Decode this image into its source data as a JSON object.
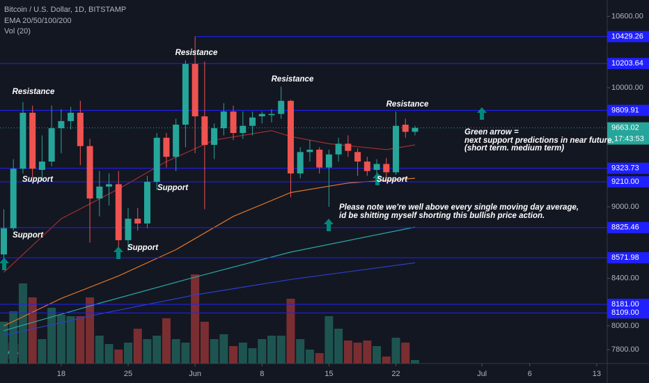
{
  "chart_data": {
    "type": "candlestick",
    "title": "Bitcoin / U.S. Dollar, 1D, BITSTAMP",
    "indicators": [
      "EMA 20/50/100/200",
      "Vol (20)"
    ],
    "colors": {
      "up": "#26a69a",
      "down": "#ef5350",
      "up_volume": "#1e5450",
      "down_volume": "#7a2e31",
      "level": "#2020ff",
      "background": "#131722"
    },
    "xlim": [
      -0.4,
      63.1
    ],
    "xticks": [
      {
        "value": 6,
        "label": "18"
      },
      {
        "value": 13,
        "label": "25"
      },
      {
        "value": 20,
        "label": "Jun"
      },
      {
        "value": 27,
        "label": "8"
      },
      {
        "value": 34,
        "label": "15"
      },
      {
        "value": 41,
        "label": "22"
      },
      {
        "value": 50,
        "label": "Jul"
      },
      {
        "value": 55,
        "label": "6"
      },
      {
        "value": 62,
        "label": "13"
      }
    ],
    "ylim": [
      7684,
      10737
    ],
    "yticks": [
      {
        "value": 10600,
        "label": "10600.00"
      },
      {
        "value": 10000,
        "label": "10000.00"
      },
      {
        "value": 9000,
        "label": "9000.00"
      },
      {
        "value": 8400,
        "label": "8400.00"
      },
      {
        "value": 8000,
        "label": "8000.00"
      },
      {
        "value": 7800,
        "label": "7800.00"
      }
    ],
    "candles": {
      "open": [
        8600,
        8820,
        9320,
        9790,
        9310,
        9380,
        9660,
        9720,
        9790,
        9510,
        9070,
        9170,
        9190,
        8720,
        8900,
        8860,
        9210,
        9580,
        9420,
        9690,
        10200,
        9760,
        9520,
        9660,
        9800,
        9620,
        9680,
        9760,
        9770,
        9780,
        9890,
        9280,
        9460,
        9480,
        9330,
        9440,
        9530,
        9460,
        9380,
        9310,
        9360,
        9290,
        9690,
        9630
      ],
      "high": [
        8980,
        9400,
        9880,
        9850,
        9600,
        9850,
        9820,
        9840,
        9890,
        9570,
        9300,
        9280,
        9300,
        8990,
        8990,
        9260,
        9620,
        9620,
        9740,
        10230,
        10430,
        10220,
        9700,
        9870,
        9850,
        9800,
        9800,
        9800,
        9820,
        10010,
        9900,
        9500,
        9560,
        9500,
        9480,
        9580,
        9600,
        9490,
        9420,
        9400,
        9410,
        9800,
        9740,
        9680
      ],
      "low": [
        8550,
        8800,
        9280,
        9250,
        9220,
        9340,
        9450,
        9650,
        9350,
        8700,
        8920,
        9010,
        8630,
        8630,
        8800,
        8820,
        9140,
        9330,
        9300,
        9500,
        9450,
        8980,
        9400,
        9600,
        9560,
        9570,
        9600,
        9700,
        9710,
        9740,
        9080,
        9240,
        9380,
        9280,
        9000,
        9380,
        9420,
        9260,
        9260,
        9250,
        9240,
        9270,
        9580,
        9600
      ],
      "close": [
        8820,
        9320,
        9790,
        9320,
        9380,
        9660,
        9720,
        9790,
        9510,
        9070,
        9170,
        9190,
        8720,
        8900,
        8860,
        9210,
        9580,
        9420,
        9690,
        10200,
        9760,
        9520,
        9660,
        9800,
        9620,
        9680,
        9750,
        9780,
        9780,
        9890,
        9280,
        9460,
        9480,
        9330,
        9440,
        9530,
        9470,
        9380,
        9300,
        9360,
        9290,
        9680,
        9630,
        9663.02
      ]
    },
    "volume": {
      "vlim": [
        0,
        300
      ],
      "values": [
        60,
        75,
        115,
        95,
        35,
        80,
        70,
        68,
        68,
        95,
        40,
        28,
        20,
        30,
        50,
        35,
        40,
        65,
        35,
        30,
        128,
        60,
        35,
        42,
        25,
        30,
        22,
        35,
        40,
        40,
        93,
        35,
        20,
        15,
        68,
        50,
        33,
        30,
        33,
        25,
        10,
        37,
        30,
        5
      ]
    },
    "ema": [
      {
        "color": "#a0302e",
        "x": [
          0,
          6,
          12,
          17,
          22,
          28,
          30,
          34,
          40,
          43
        ],
        "values": [
          8450,
          8900,
          9150,
          9380,
          9560,
          9640,
          9590,
          9530,
          9480,
          9520
        ]
      },
      {
        "color": "#e0762a",
        "x": [
          0,
          6,
          12,
          18,
          24,
          30,
          36,
          43
        ],
        "values": [
          8000,
          8230,
          8420,
          8640,
          8920,
          9120,
          9200,
          9240
        ]
      },
      {
        "color": "#2aa7a5",
        "x": [
          0,
          10,
          20,
          30,
          43
        ],
        "values": [
          7960,
          8190,
          8410,
          8620,
          8830
        ]
      },
      {
        "color": "#2a3fd0",
        "x": [
          0,
          10,
          20,
          30,
          43
        ],
        "values": [
          7920,
          8100,
          8260,
          8390,
          8530
        ]
      }
    ],
    "levels": [
      {
        "value": 10429.26,
        "label": "10429.26"
      },
      {
        "value": 10203.64,
        "label": "10203.64"
      },
      {
        "value": 9809.91,
        "label": "9809.91"
      },
      {
        "value": 9323.73,
        "label": "9323.73"
      },
      {
        "value": 9210,
        "label": "9210.00"
      },
      {
        "value": 8825.46,
        "label": "8825.46"
      },
      {
        "value": 8571.98,
        "label": "8571.98"
      },
      {
        "value": 8181,
        "label": "8181.00"
      },
      {
        "value": 8109,
        "label": "8109.00"
      }
    ],
    "last_price": {
      "value": 9663.02,
      "label": "9663.02"
    },
    "countdown": "17:43:53",
    "annotations": [
      "Resistance",
      "Resistance",
      "Resistance",
      "Resistance",
      "Support",
      "Support",
      "Support",
      "Support",
      "Support",
      "Green arrow =",
      "next support predictions in near future.",
      "(short term. medium term)",
      "Please note we're well above every single moving day average,",
      "id be shitting myself shorting this bullish price action."
    ]
  }
}
